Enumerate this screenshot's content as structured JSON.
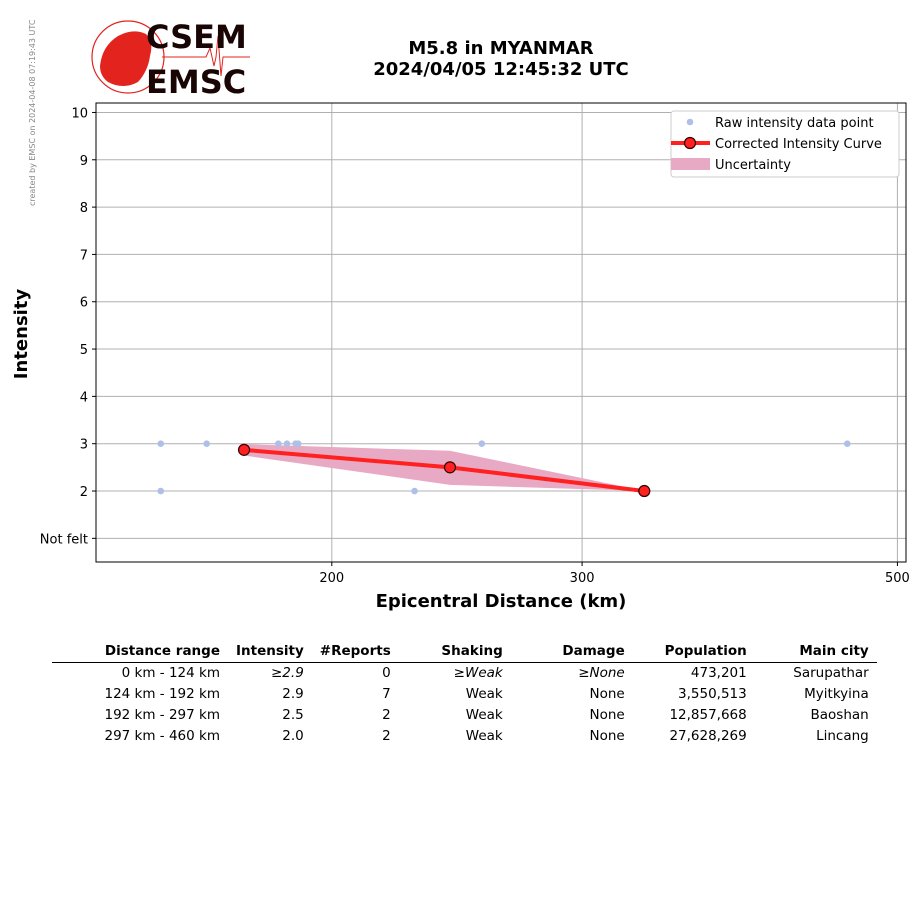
{
  "watermark": "created by EMSC on 2024-04-08 07:19:43 UTC",
  "logo": {
    "line1": "CSEM",
    "line2": "EMSC"
  },
  "title": {
    "line1": "M5.8 in MYANMAR",
    "line2": "2024/04/05 12:45:32 UTC"
  },
  "colors": {
    "raw": "#aebfe8",
    "curve": "#ff2020",
    "band": "#e8a9c4",
    "logo": "#e3241e"
  },
  "chart_data": {
    "type": "line",
    "xlabel": "Epicentral Distance (km)",
    "ylabel": "Intensity",
    "xscale": "log",
    "xlim": [
      136.5,
      507
    ],
    "ylim": [
      0.5,
      10.2
    ],
    "xticks": [
      200,
      300,
      500
    ],
    "xtick_labels": [
      "200",
      "300",
      "500"
    ],
    "yticks": [
      1,
      2,
      3,
      4,
      5,
      6,
      7,
      8,
      9,
      10
    ],
    "ytick_labels": [
      "Not felt",
      "2",
      "3",
      "4",
      "5",
      "6",
      "7",
      "8",
      "9",
      "10"
    ],
    "grid": true,
    "legend_position": "top-right",
    "legend": [
      "Raw intensity data point",
      "Corrected Intensity Curve",
      "Uncertainty"
    ],
    "raw_points": [
      {
        "x": 151.6,
        "y": 3
      },
      {
        "x": 151.6,
        "y": 2
      },
      {
        "x": 163.3,
        "y": 3
      },
      {
        "x": 183.4,
        "y": 3
      },
      {
        "x": 186.0,
        "y": 3
      },
      {
        "x": 188.6,
        "y": 3
      },
      {
        "x": 189.4,
        "y": 3
      },
      {
        "x": 228.7,
        "y": 2
      },
      {
        "x": 255.0,
        "y": 3
      },
      {
        "x": 461.0,
        "y": 3
      }
    ],
    "curve": [
      {
        "x": 173.5,
        "y": 2.87
      },
      {
        "x": 242.2,
        "y": 2.5
      },
      {
        "x": 331.8,
        "y": 2.0
      }
    ],
    "uncertainty_upper": [
      2.99,
      2.85,
      2.0
    ],
    "uncertainty_lower": [
      2.75,
      2.13,
      2.0
    ]
  },
  "table": {
    "headers": [
      "Distance range",
      "Intensity",
      "#Reports",
      "Shaking",
      "Damage",
      "Population",
      "Main city"
    ],
    "rows": [
      [
        "0 km -  124 km",
        "≥2.9",
        "0",
        "≥Weak",
        "≥None",
        "473,201",
        "Sarupathar"
      ],
      [
        "124 km -  192 km",
        "2.9",
        "7",
        "Weak",
        "None",
        "3,550,513",
        "Myitkyina"
      ],
      [
        "192 km -  297 km",
        "2.5",
        "2",
        "Weak",
        "None",
        "12,857,668",
        "Baoshan"
      ],
      [
        "297 km -  460 km",
        "2.0",
        "2",
        "Weak",
        "None",
        "27,628,269",
        "Lincang"
      ]
    ]
  }
}
